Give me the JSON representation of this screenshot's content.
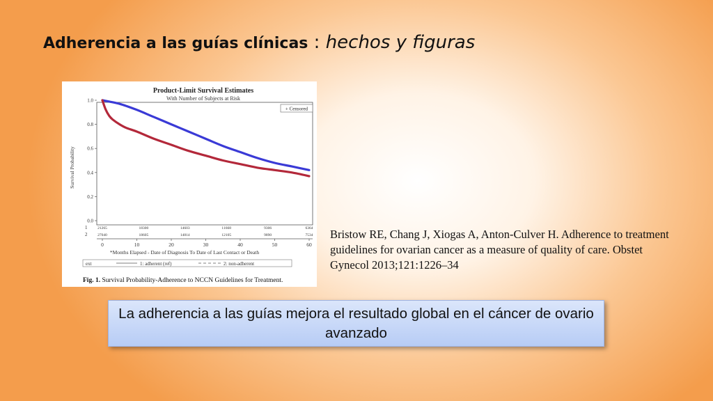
{
  "slide": {
    "title_bold": "Adherencia a las guías clínicas",
    "title_sep": " : ",
    "title_italic": "hechos y figuras"
  },
  "citation": "Bristow RE, Chang J, Xiogas A, Anton-Culver H. Adherence to treatment guidelines for ovarian cancer as a measure of quality of care. Obstet Gynecol 2013;121:1226–34",
  "callout": "La adherencia a las guías mejora el resultado global en el cáncer de ovario avanzado",
  "chart_data": {
    "type": "line",
    "title": "Product-Limit Survival Estimates",
    "subtitle": "With Number of Subjects at Risk",
    "xlabel": "*Months Elapsed - Date of Diagnosis To Date of Last Contact or Death",
    "ylabel": "Survival Probability",
    "xlim": [
      0,
      60
    ],
    "ylim": [
      0,
      1.0
    ],
    "x_ticks": [
      "0",
      "10",
      "20",
      "30",
      "40",
      "50",
      "60"
    ],
    "y_ticks": [
      "0.0",
      "0.2",
      "0.4",
      "0.6",
      "0.8",
      "1.0"
    ],
    "censored_label": "+ Censored",
    "legend": {
      "prefix": "ext",
      "entries": [
        "1: adherent (ref)",
        "2: non-adherent"
      ]
    },
    "caption_bold": "Fig. 1.",
    "caption": "Survival Probability-Adherence to NCCN Guidelines for Treatment.",
    "colors": {
      "adherent": "#3a3ad6",
      "non_adherent": "#b3283a"
    },
    "series": [
      {
        "name": "1: adherent (ref)",
        "x": [
          0,
          5,
          10,
          15,
          20,
          25,
          30,
          35,
          40,
          45,
          50,
          55,
          60
        ],
        "values": [
          1.0,
          0.97,
          0.92,
          0.86,
          0.8,
          0.74,
          0.68,
          0.62,
          0.57,
          0.52,
          0.48,
          0.45,
          0.42
        ]
      },
      {
        "name": "2: non-adherent",
        "x": [
          0,
          1,
          2,
          3,
          5,
          7,
          10,
          15,
          20,
          25,
          30,
          35,
          40,
          45,
          50,
          55,
          60
        ],
        "values": [
          1.0,
          0.92,
          0.87,
          0.84,
          0.8,
          0.77,
          0.74,
          0.68,
          0.63,
          0.58,
          0.54,
          0.5,
          0.47,
          0.44,
          0.42,
          0.4,
          0.37
        ]
      }
    ],
    "at_risk": {
      "row_labels": [
        "1",
        "2"
      ],
      "x": [
        0,
        12,
        24,
        36,
        48,
        60
      ],
      "rows": [
        [
          "21265",
          "18300",
          "14603",
          "11668",
          "9306",
          "6364"
        ],
        [
          "27040",
          "18605",
          "14814",
          "12105",
          "9890",
          "7534"
        ]
      ]
    }
  }
}
